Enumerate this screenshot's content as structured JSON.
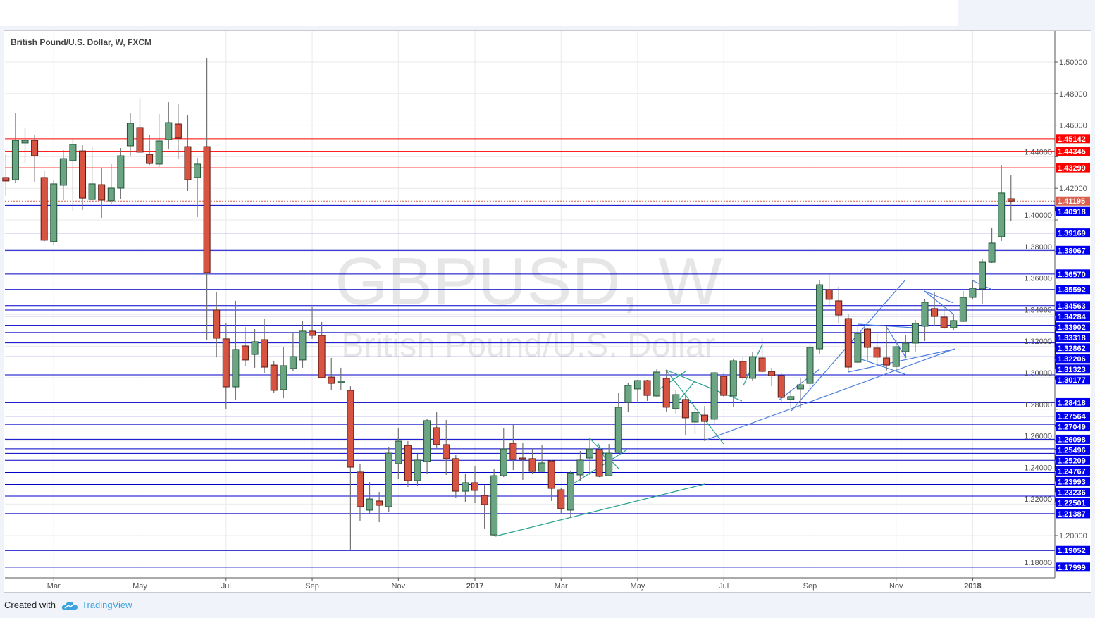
{
  "legend": "British Pound/U.S. Dollar, W, FXCM",
  "footer": {
    "created_with": "Created with",
    "brand": "TradingView"
  },
  "colors": {
    "up": "#6ba583",
    "up_border": "#225437",
    "down": "#d75442",
    "down_border": "#5b1a13",
    "wick": "#737375",
    "resistance": "#ff0000",
    "support": "#0000c8",
    "support_label": "#0000ee",
    "last_price": "#d9604f",
    "drawing_teal": "#27a08e",
    "drawing_blue": "#4d7fe0"
  },
  "chart_data": {
    "type": "candlestick",
    "title": "",
    "watermark": {
      "symbol": "GBPUSD, W",
      "description": "British Pound/U.S. Dollar"
    },
    "interval": "W",
    "ylim": [
      1.17,
      1.51
    ],
    "grid": true,
    "y_ticks": [
      "1.18000",
      "1.20000",
      "1.22000",
      "1.24000",
      "1.26000",
      "1.28000",
      "1.30000",
      "1.32000",
      "1.34000",
      "1.36000",
      "1.38000",
      "1.40000",
      "1.42000",
      "1.44000",
      "1.46000",
      "1.48000",
      "1.50000"
    ],
    "x_ticks": [
      {
        "label": "Mar",
        "date": "2016-02-29",
        "bold": false
      },
      {
        "label": "May",
        "date": "2016-05-02",
        "bold": false
      },
      {
        "label": "Jul",
        "date": "2016-07-04",
        "bold": false
      },
      {
        "label": "Sep",
        "date": "2016-09-05",
        "bold": false
      },
      {
        "label": "Nov",
        "date": "2016-11-07",
        "bold": false
      },
      {
        "label": "2017",
        "date": "2017-01-02",
        "bold": true
      },
      {
        "label": "Mar",
        "date": "2017-03-06",
        "bold": false
      },
      {
        "label": "May",
        "date": "2017-05-01",
        "bold": false
      },
      {
        "label": "Jul",
        "date": "2017-07-03",
        "bold": false
      },
      {
        "label": "Sep",
        "date": "2017-09-04",
        "bold": false
      },
      {
        "label": "Nov",
        "date": "2017-11-06",
        "bold": false
      },
      {
        "label": "2018",
        "date": "2018-01-01",
        "bold": true
      }
    ],
    "last_price": "1.41195",
    "levels_resistance": [
      "1.45142",
      "1.44345",
      "1.43299"
    ],
    "levels_support": [
      "1.40918",
      "1.39169",
      "1.38067",
      "1.36570",
      "1.35592",
      "1.34563",
      "1.34284",
      "1.33902",
      "1.33318",
      "1.32862",
      "1.32206",
      "1.31323",
      "1.30177",
      "1.28418",
      "1.27564",
      "1.27049",
      "1.26098",
      "1.25496",
      "1.25209",
      "1.24767",
      "1.23993",
      "1.23236",
      "1.22501",
      "1.21387",
      "1.19052",
      "1.17999"
    ],
    "candles_columns": [
      "date",
      "open",
      "high",
      "low",
      "close"
    ],
    "candles": [
      [
        "2016-01-25",
        1.4268,
        1.442,
        1.4152,
        1.4246
      ],
      [
        "2016-02-01",
        1.4254,
        1.4674,
        1.4232,
        1.4504
      ],
      [
        "2016-02-08",
        1.4487,
        1.4585,
        1.4357,
        1.4504
      ],
      [
        "2016-02-15",
        1.4504,
        1.454,
        1.4241,
        1.4406
      ],
      [
        "2016-02-22",
        1.4268,
        1.4313,
        1.3862,
        1.3871
      ],
      [
        "2016-02-29",
        1.3862,
        1.4254,
        1.3839,
        1.4228
      ],
      [
        "2016-03-07",
        1.4219,
        1.4442,
        1.4125,
        1.4388
      ],
      [
        "2016-03-14",
        1.4375,
        1.4513,
        1.4058,
        1.4478
      ],
      [
        "2016-03-21",
        1.4437,
        1.4473,
        1.4063,
        1.4138
      ],
      [
        "2016-03-28",
        1.4129,
        1.4464,
        1.411,
        1.4228
      ],
      [
        "2016-04-04",
        1.4223,
        1.4326,
        1.4009,
        1.4125
      ],
      [
        "2016-04-11",
        1.4121,
        1.4353,
        1.4098,
        1.4201
      ],
      [
        "2016-04-18",
        1.4201,
        1.4455,
        1.4134,
        1.4406
      ],
      [
        "2016-04-25",
        1.4469,
        1.4674,
        1.4406,
        1.4612
      ],
      [
        "2016-05-02",
        1.4585,
        1.4772,
        1.4424,
        1.4429
      ],
      [
        "2016-05-09",
        1.4415,
        1.4536,
        1.4348,
        1.4357
      ],
      [
        "2016-05-16",
        1.4353,
        1.467,
        1.4335,
        1.45
      ],
      [
        "2016-05-23",
        1.4509,
        1.4745,
        1.4446,
        1.4616
      ],
      [
        "2016-05-30",
        1.4607,
        1.4732,
        1.4388,
        1.4518
      ],
      [
        "2016-06-06",
        1.4464,
        1.4665,
        1.4183,
        1.4254
      ],
      [
        "2016-06-13",
        1.4268,
        1.4393,
        1.4018,
        1.4353
      ],
      [
        "2016-06-20",
        1.4464,
        1.5022,
        1.3237,
        1.3665
      ],
      [
        "2016-06-27",
        1.3429,
        1.354,
        1.3129,
        1.325
      ],
      [
        "2016-07-04",
        1.3246,
        1.3344,
        1.2799,
        1.2942
      ],
      [
        "2016-07-11",
        1.2942,
        1.3487,
        1.2857,
        1.3179
      ],
      [
        "2016-07-18",
        1.3201,
        1.3321,
        1.3071,
        1.3112
      ],
      [
        "2016-07-25",
        1.3147,
        1.3308,
        1.3063,
        1.3228
      ],
      [
        "2016-08-01",
        1.3241,
        1.3375,
        1.3027,
        1.3067
      ],
      [
        "2016-08-08",
        1.308,
        1.3103,
        1.2906,
        1.292
      ],
      [
        "2016-08-15",
        1.2924,
        1.3192,
        1.287,
        1.3076
      ],
      [
        "2016-08-22",
        1.3058,
        1.329,
        1.304,
        1.3134
      ],
      [
        "2016-08-29",
        1.3112,
        1.3357,
        1.3063,
        1.3295
      ],
      [
        "2016-09-05",
        1.3295,
        1.3451,
        1.3246,
        1.3268
      ],
      [
        "2016-09-12",
        1.3268,
        1.3353,
        1.2995,
        1.3
      ],
      [
        "2016-09-19",
        1.3004,
        1.3125,
        1.292,
        1.2964
      ],
      [
        "2016-09-26",
        1.2969,
        1.3063,
        1.292,
        1.2978
      ],
      [
        "2016-10-03",
        1.292,
        1.2946,
        1.1911,
        1.2433
      ],
      [
        "2016-10-10",
        1.2402,
        1.2451,
        1.2094,
        1.2183
      ],
      [
        "2016-10-17",
        1.2161,
        1.2339,
        1.2143,
        1.2232
      ],
      [
        "2016-10-24",
        1.2219,
        1.2277,
        1.2085,
        1.2192
      ],
      [
        "2016-10-31",
        1.2183,
        1.2562,
        1.2147,
        1.2522
      ],
      [
        "2016-11-07",
        1.2455,
        1.2679,
        1.2357,
        1.2598
      ],
      [
        "2016-11-14",
        1.2571,
        1.2598,
        1.2308,
        1.2348
      ],
      [
        "2016-11-21",
        1.2348,
        1.2518,
        1.2317,
        1.2478
      ],
      [
        "2016-11-28",
        1.2469,
        1.2741,
        1.2388,
        1.2728
      ],
      [
        "2016-12-05",
        1.2683,
        1.2781,
        1.2554,
        1.2576
      ],
      [
        "2016-12-12",
        1.2576,
        1.2732,
        1.2384,
        1.2487
      ],
      [
        "2016-12-19",
        1.2487,
        1.2509,
        1.2237,
        1.2281
      ],
      [
        "2016-12-26",
        1.2281,
        1.2393,
        1.221,
        1.2335
      ],
      [
        "2017-01-02",
        1.2335,
        1.2438,
        1.2205,
        1.2286
      ],
      [
        "2017-01-09",
        1.2254,
        1.2321,
        1.2045,
        1.2196
      ],
      [
        "2017-01-16",
        1.2004,
        1.2424,
        1.1996,
        1.2379
      ],
      [
        "2017-01-23",
        1.2379,
        1.2679,
        1.237,
        1.2549
      ],
      [
        "2017-01-30",
        1.2585,
        1.2705,
        1.2415,
        1.2482
      ],
      [
        "2017-02-06",
        1.2491,
        1.2585,
        1.2353,
        1.2482
      ],
      [
        "2017-02-13",
        1.2487,
        1.2549,
        1.2388,
        1.2406
      ],
      [
        "2017-02-20",
        1.2406,
        1.2576,
        1.2406,
        1.246
      ],
      [
        "2017-02-27",
        1.2473,
        1.2478,
        1.2219,
        1.2299
      ],
      [
        "2017-03-06",
        1.229,
        1.2304,
        1.2138,
        1.217
      ],
      [
        "2017-03-13",
        1.2161,
        1.2411,
        1.2112,
        1.2397
      ],
      [
        "2017-03-20",
        1.2384,
        1.2536,
        1.2344,
        1.2478
      ],
      [
        "2017-03-27",
        1.2491,
        1.2616,
        1.2384,
        1.2549
      ],
      [
        "2017-04-03",
        1.2545,
        1.2567,
        1.237,
        1.2375
      ],
      [
        "2017-04-10",
        1.2379,
        1.258,
        1.2375,
        1.2522
      ],
      [
        "2017-04-17",
        1.2527,
        1.2906,
        1.2522,
        1.2813
      ],
      [
        "2017-04-24",
        1.2844,
        1.2969,
        1.2781,
        1.2951
      ],
      [
        "2017-05-01",
        1.2929,
        1.2987,
        1.2839,
        1.2982
      ],
      [
        "2017-05-08",
        1.2982,
        1.2987,
        1.2853,
        1.2888
      ],
      [
        "2017-05-15",
        1.2884,
        1.3054,
        1.2875,
        1.3036
      ],
      [
        "2017-05-22",
        1.2996,
        1.3049,
        1.2786,
        1.2813
      ],
      [
        "2017-05-29",
        1.2804,
        1.2924,
        1.2772,
        1.2893
      ],
      [
        "2017-06-05",
        1.2862,
        1.2893,
        1.2638,
        1.2746
      ],
      [
        "2017-06-12",
        1.2719,
        1.2821,
        1.2643,
        1.2781
      ],
      [
        "2017-06-19",
        1.2763,
        1.2821,
        1.2598,
        1.2723
      ],
      [
        "2017-06-26",
        1.2737,
        1.3036,
        1.271,
        1.3031
      ],
      [
        "2017-07-03",
        1.3009,
        1.3031,
        1.2875,
        1.2888
      ],
      [
        "2017-07-10",
        1.2884,
        1.3121,
        1.2817,
        1.3107
      ],
      [
        "2017-07-17",
        1.3103,
        1.313,
        1.2987,
        1.3
      ],
      [
        "2017-07-24",
        1.2996,
        1.3165,
        1.2982,
        1.3134
      ],
      [
        "2017-07-31",
        1.3125,
        1.325,
        1.3031,
        1.304
      ],
      [
        "2017-08-07",
        1.304,
        1.3063,
        1.2946,
        1.3013
      ],
      [
        "2017-08-14",
        1.3013,
        1.3027,
        1.2839,
        1.2875
      ],
      [
        "2017-08-21",
        1.2862,
        1.292,
        1.281,
        1.288
      ],
      [
        "2017-08-28",
        1.2929,
        1.3,
        1.2808,
        1.2955
      ],
      [
        "2017-09-04",
        1.2964,
        1.3228,
        1.292,
        1.3192
      ],
      [
        "2017-09-11",
        1.3183,
        1.362,
        1.3152,
        1.3589
      ],
      [
        "2017-09-18",
        1.3558,
        1.3661,
        1.346,
        1.3496
      ],
      [
        "2017-09-25",
        1.3487,
        1.3576,
        1.3348,
        1.3397
      ],
      [
        "2017-10-02",
        1.3375,
        1.3406,
        1.3036,
        1.3067
      ],
      [
        "2017-10-09",
        1.3098,
        1.3339,
        1.3085,
        1.3281
      ],
      [
        "2017-10-16",
        1.3308,
        1.3317,
        1.3103,
        1.3192
      ],
      [
        "2017-10-23",
        1.3188,
        1.3286,
        1.3085,
        1.313
      ],
      [
        "2017-10-30",
        1.3125,
        1.3326,
        1.3045,
        1.308
      ],
      [
        "2017-11-06",
        1.3071,
        1.3237,
        1.3045,
        1.3196
      ],
      [
        "2017-11-13",
        1.3165,
        1.3268,
        1.3125,
        1.3219
      ],
      [
        "2017-11-20",
        1.3219,
        1.3366,
        1.3165,
        1.3344
      ],
      [
        "2017-11-27",
        1.3326,
        1.3496,
        1.3232,
        1.3478
      ],
      [
        "2017-12-04",
        1.3438,
        1.3545,
        1.3326,
        1.3388
      ],
      [
        "2017-12-11",
        1.3384,
        1.346,
        1.3308,
        1.3317
      ],
      [
        "2017-12-18",
        1.3317,
        1.3402,
        1.3299,
        1.3362
      ],
      [
        "2017-12-25",
        1.3357,
        1.3549,
        1.3353,
        1.3509
      ],
      [
        "2018-01-01",
        1.3509,
        1.3616,
        1.35,
        1.3567
      ],
      [
        "2018-01-08",
        1.3563,
        1.375,
        1.3464,
        1.3732
      ],
      [
        "2018-01-15",
        1.3732,
        1.3951,
        1.3728,
        1.3853
      ],
      [
        "2018-01-22",
        1.3893,
        1.4348,
        1.3866,
        1.417
      ],
      [
        "2018-01-29",
        1.4134,
        1.4281,
        1.3991,
        1.41195
      ]
    ]
  }
}
